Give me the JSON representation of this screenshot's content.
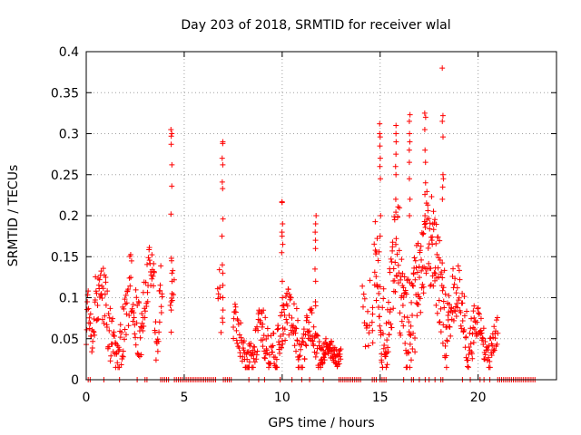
{
  "chart_data": {
    "type": "scatter",
    "title": "Day 203 of 2018, SRMTID for receiver wlal",
    "xlabel": "GPS time / hours",
    "ylabel": "SRMTID / TECUs",
    "xlim": [
      0,
      24
    ],
    "ylim": [
      0,
      0.4
    ],
    "xticks": [
      0,
      5,
      10,
      15,
      20
    ],
    "yticks": [
      0,
      0.05,
      0.1,
      0.15,
      0.2,
      0.25,
      0.3,
      0.35,
      0.4
    ],
    "xtick_labels": [
      "0",
      "5",
      "10",
      "15",
      "20"
    ],
    "ytick_labels": [
      "0",
      "0.05",
      "0.1",
      "0.15",
      "0.2",
      "0.25",
      "0.3",
      "0.35",
      "0.4"
    ],
    "grid": true,
    "marker": "+",
    "color": "#ff0000",
    "segments": [
      {
        "start": 0.0,
        "end": 0.4,
        "step": 0.02,
        "base": 0.06,
        "amp": 0.03,
        "jitter": 0.025
      },
      {
        "start": 0.4,
        "end": 2.2,
        "step": 0.02,
        "base": 0.07,
        "amp": 0.05,
        "jitter": 0.035
      },
      {
        "start": 2.2,
        "end": 3.5,
        "step": 0.02,
        "base": 0.1,
        "amp": 0.05,
        "jitter": 0.035
      },
      {
        "start": 3.5,
        "end": 3.9,
        "step": 0.02,
        "base": 0.08,
        "amp": 0.04,
        "jitter": 0.03
      },
      {
        "start": 4.3,
        "end": 4.5,
        "step": 0.03,
        "base": 0.1,
        "amp": 0.04,
        "jitter": 0.03
      },
      {
        "start": 6.7,
        "end": 6.9,
        "step": 0.03,
        "base": 0.1,
        "amp": 0.03,
        "jitter": 0.03
      },
      {
        "start": 7.5,
        "end": 9.0,
        "step": 0.02,
        "base": 0.045,
        "amp": 0.03,
        "jitter": 0.025
      },
      {
        "start": 9.0,
        "end": 10.8,
        "step": 0.02,
        "base": 0.055,
        "amp": 0.035,
        "jitter": 0.03
      },
      {
        "start": 10.8,
        "end": 12.0,
        "step": 0.02,
        "base": 0.045,
        "amp": 0.03,
        "jitter": 0.025
      },
      {
        "start": 12.0,
        "end": 13.0,
        "step": 0.015,
        "base": 0.032,
        "amp": 0.01,
        "jitter": 0.012
      },
      {
        "start": 14.1,
        "end": 14.5,
        "step": 0.03,
        "base": 0.08,
        "amp": 0.03,
        "jitter": 0.03
      },
      {
        "start": 14.7,
        "end": 16.0,
        "step": 0.015,
        "base": 0.11,
        "amp": 0.07,
        "jitter": 0.06
      },
      {
        "start": 16.0,
        "end": 18.5,
        "step": 0.015,
        "base": 0.12,
        "amp": 0.07,
        "jitter": 0.06
      },
      {
        "start": 18.5,
        "end": 19.8,
        "step": 0.02,
        "base": 0.08,
        "amp": 0.04,
        "jitter": 0.035
      },
      {
        "start": 19.8,
        "end": 21.0,
        "step": 0.02,
        "base": 0.05,
        "amp": 0.025,
        "jitter": 0.02
      }
    ],
    "spikes": [
      {
        "x": 4.35,
        "values": [
          0.305,
          0.3,
          0.297,
          0.287,
          0.262,
          0.236,
          0.202,
          0.148,
          0.145,
          0.13,
          0.12,
          0.105,
          0.095,
          0.085
        ]
      },
      {
        "x": 6.95,
        "values": [
          0.29,
          0.288,
          0.27,
          0.262,
          0.241,
          0.233,
          0.196,
          0.175,
          0.14,
          0.13,
          0.115,
          0.1,
          0.085,
          0.075,
          0.07
        ]
      },
      {
        "x": 10.0,
        "values": [
          0.217,
          0.216,
          0.19,
          0.18,
          0.175,
          0.165,
          0.155,
          0.12,
          0.1,
          0.09
        ]
      },
      {
        "x": 11.7,
        "values": [
          0.2,
          0.19,
          0.18,
          0.17,
          0.16,
          0.135,
          0.12,
          0.095,
          0.09
        ]
      },
      {
        "x": 14.6,
        "values": [
          0.088,
          0.08,
          0.07,
          0.06,
          0.045
        ]
      },
      {
        "x": 15.0,
        "values": [
          0.312,
          0.3,
          0.296,
          0.285,
          0.27,
          0.26,
          0.245,
          0.2,
          0.175
        ]
      },
      {
        "x": 15.8,
        "values": [
          0.31,
          0.3,
          0.29,
          0.275,
          0.26,
          0.25,
          0.22
        ]
      },
      {
        "x": 16.5,
        "values": [
          0.323,
          0.315,
          0.3,
          0.29,
          0.28,
          0.265,
          0.245,
          0.22,
          0.2
        ]
      },
      {
        "x": 17.3,
        "values": [
          0.325,
          0.32,
          0.305,
          0.28,
          0.265,
          0.24,
          0.2
        ]
      },
      {
        "x": 18.2,
        "values": [
          0.38,
          0.322,
          0.315,
          0.296,
          0.25,
          0.245,
          0.235,
          0.22
        ]
      }
    ],
    "zero_hours": [
      0.1,
      0.2,
      0.9,
      1.7,
      2.6,
      3.0,
      3.1,
      3.8,
      3.9,
      4.0,
      4.1,
      4.2,
      4.5,
      4.6,
      4.7,
      4.8,
      4.9,
      5.0,
      5.1,
      5.2,
      5.3,
      5.4,
      5.5,
      5.6,
      5.7,
      5.8,
      5.9,
      6.0,
      6.1,
      6.2,
      6.3,
      6.4,
      6.5,
      6.6,
      7.0,
      7.1,
      7.2,
      7.3,
      7.4,
      8.3,
      8.8,
      9.1,
      9.9,
      10.5,
      11.0,
      11.4,
      12.1,
      12.9,
      13.0,
      13.1,
      13.2,
      13.3,
      13.4,
      13.5,
      13.6,
      13.7,
      13.8,
      13.9,
      14.0,
      14.6,
      14.7,
      14.8,
      15.0,
      15.1,
      15.2,
      15.3,
      16.2,
      16.6,
      16.7,
      17.0,
      17.3,
      17.5,
      17.8,
      18.1,
      18.2,
      19.2,
      19.6,
      20.1,
      20.3,
      20.6,
      21.0,
      21.1,
      21.2,
      21.3,
      21.4,
      21.5,
      21.6,
      21.7,
      21.8,
      21.9,
      22.0,
      22.1,
      22.2,
      22.3,
      22.4,
      22.5,
      22.6,
      22.7,
      22.8,
      22.9
    ]
  }
}
